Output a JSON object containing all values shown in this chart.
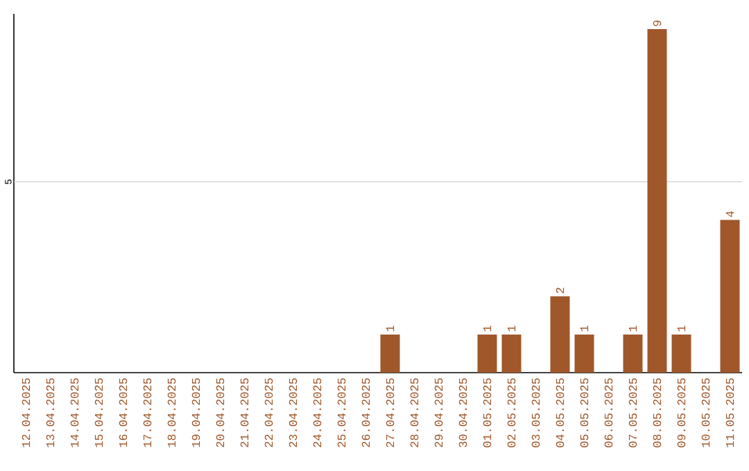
{
  "chart_data": {
    "type": "bar",
    "ylim": [
      0,
      9.4
    ],
    "categories": [
      "12.04.2025",
      "13.04.2025",
      "14.04.2025",
      "15.04.2025",
      "16.04.2025",
      "17.04.2025",
      "18.04.2025",
      "19.04.2025",
      "20.04.2025",
      "21.04.2025",
      "22.04.2025",
      "23.04.2025",
      "24.04.2025",
      "25.04.2025",
      "26.04.2025",
      "27.04.2025",
      "28.04.2025",
      "29.04.2025",
      "30.04.2025",
      "01.05.2025",
      "02.05.2025",
      "03.05.2025",
      "04.05.2025",
      "05.05.2025",
      "06.05.2025",
      "07.05.2025",
      "08.05.2025",
      "09.05.2025",
      "10.05.2025",
      "11.05.2025"
    ],
    "values": [
      null,
      null,
      null,
      null,
      null,
      null,
      null,
      null,
      null,
      null,
      null,
      null,
      null,
      null,
      null,
      1,
      null,
      null,
      null,
      1,
      1,
      null,
      2,
      1,
      null,
      1,
      9,
      1,
      null,
      4
    ],
    "data_labels": true,
    "color": "#a0572a",
    "ref_lines": [
      {
        "axis": "y",
        "value": 5,
        "label": "5",
        "color": "#c8c8c8"
      }
    ]
  }
}
